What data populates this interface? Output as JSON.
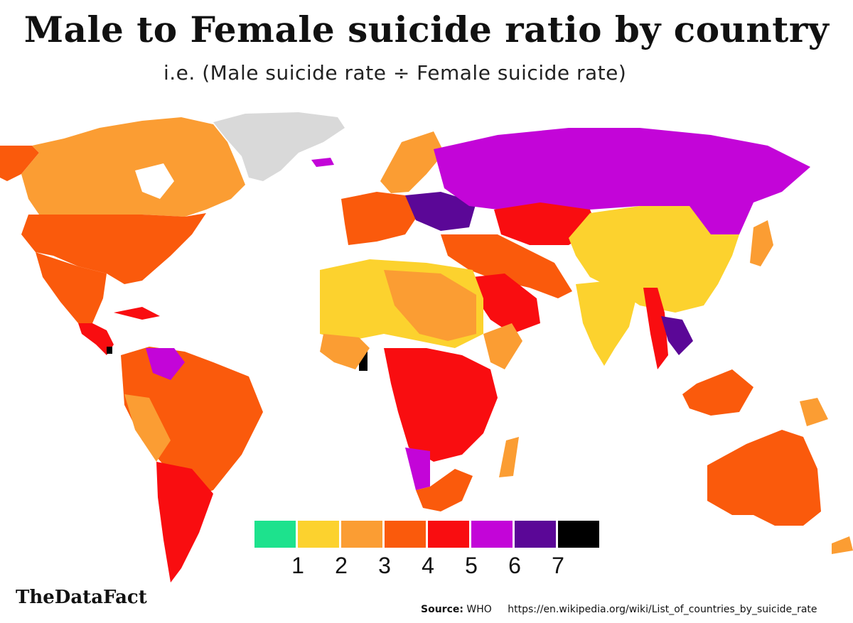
{
  "title": "Male to Female suicide ratio by country",
  "subtitle": "i.e. (Male suicide rate ÷ Female suicide rate)",
  "legend": {
    "colors": [
      "#1de28d",
      "#fcd22e",
      "#fb9d33",
      "#fa5a0c",
      "#f90d10",
      "#c305d8",
      "#5b0797",
      "#000000"
    ],
    "labels": [
      "1",
      "2",
      "3",
      "4",
      "5",
      "6",
      "7"
    ]
  },
  "colors": {
    "no_data": "#d9d9d9",
    "ratio_1_2": "#fcd22e",
    "ratio_2_3": "#fb9d33",
    "ratio_3_4": "#fa5a0c",
    "ratio_4_5": "#f90d10",
    "ratio_5_6": "#c305d8",
    "ratio_6_7": "#5b0797",
    "ratio_7_plus": "#000000"
  },
  "brand": "TheDataFact",
  "source": {
    "label": "Source:",
    "name": "WHO",
    "url": "https://en.wikipedia.org/wiki/List_of_countries_by_suicide_rate"
  }
}
